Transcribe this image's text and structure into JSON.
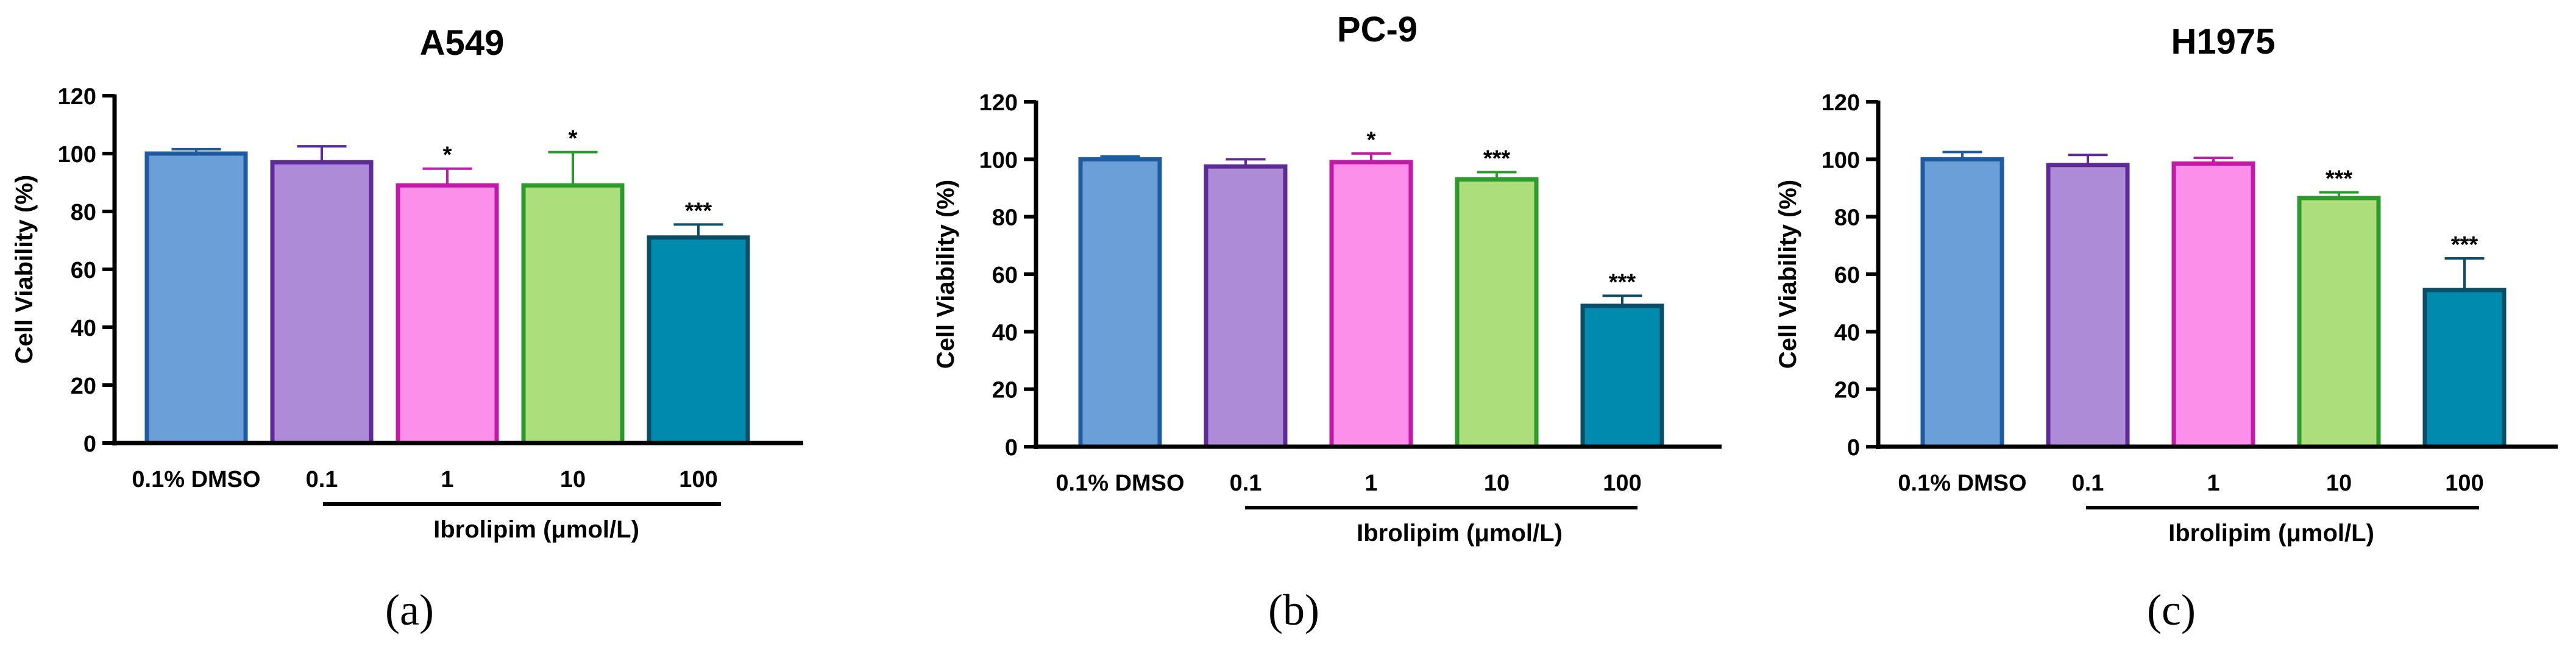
{
  "chart_data": [
    {
      "type": "bar",
      "panel_label": "(a)",
      "title": "A549",
      "ylabel": "Cell Viability (%)",
      "xlabel": "Ibrolipim (μmol/L)",
      "ylim": [
        0,
        120
      ],
      "yticks": [
        0,
        20,
        40,
        60,
        80,
        100,
        120
      ],
      "categories": [
        "0.1% DMSO",
        "0.1",
        "1",
        "10",
        "100"
      ],
      "values": [
        100,
        97,
        89,
        89,
        71
      ],
      "errors": [
        1.5,
        5.5,
        5.8,
        11.5,
        4.5
      ],
      "significance": [
        "",
        "",
        "*",
        "*",
        "***"
      ],
      "bracket_from": "0.1",
      "bracket_to": "100"
    },
    {
      "type": "bar",
      "panel_label": "(b)",
      "title": "PC-9",
      "ylabel": "Cell Viability (%)",
      "xlabel": "Ibrolipim (μmol/L)",
      "ylim": [
        0,
        120
      ],
      "yticks": [
        0,
        20,
        40,
        60,
        80,
        100,
        120
      ],
      "categories": [
        "0.1% DMSO",
        "0.1",
        "1",
        "10",
        "100"
      ],
      "values": [
        100,
        97.5,
        99,
        93,
        49
      ],
      "errors": [
        1.0,
        2.5,
        3.0,
        2.5,
        3.5
      ],
      "significance": [
        "",
        "",
        "*",
        "***",
        "***"
      ],
      "bracket_from": "0.1",
      "bracket_to": "100"
    },
    {
      "type": "bar",
      "panel_label": "(c)",
      "title": "H1975",
      "ylabel": "Cell Viability (%)",
      "xlabel": "Ibrolipim (μmol/L)",
      "ylim": [
        0,
        120
      ],
      "yticks": [
        0,
        20,
        40,
        60,
        80,
        100,
        120
      ],
      "categories": [
        "0.1% DMSO",
        "0.1",
        "1",
        "10",
        "100"
      ],
      "values": [
        100,
        98,
        98.5,
        86.5,
        54.5
      ],
      "errors": [
        2.5,
        3.5,
        2.0,
        2.0,
        11.0
      ],
      "significance": [
        "",
        "",
        "",
        "***",
        "***"
      ],
      "bracket_from": "0.1",
      "bracket_to": "100"
    }
  ],
  "colors": {
    "fills": [
      "#6a9fd8",
      "#ae8bd6",
      "#fb8fe9",
      "#acdf7c",
      "#008aae"
    ],
    "strokes": [
      "#1f5ba0",
      "#5d2a97",
      "#c21aa7",
      "#2c9a2c",
      "#0c4e66"
    ],
    "axis": "#000000"
  }
}
